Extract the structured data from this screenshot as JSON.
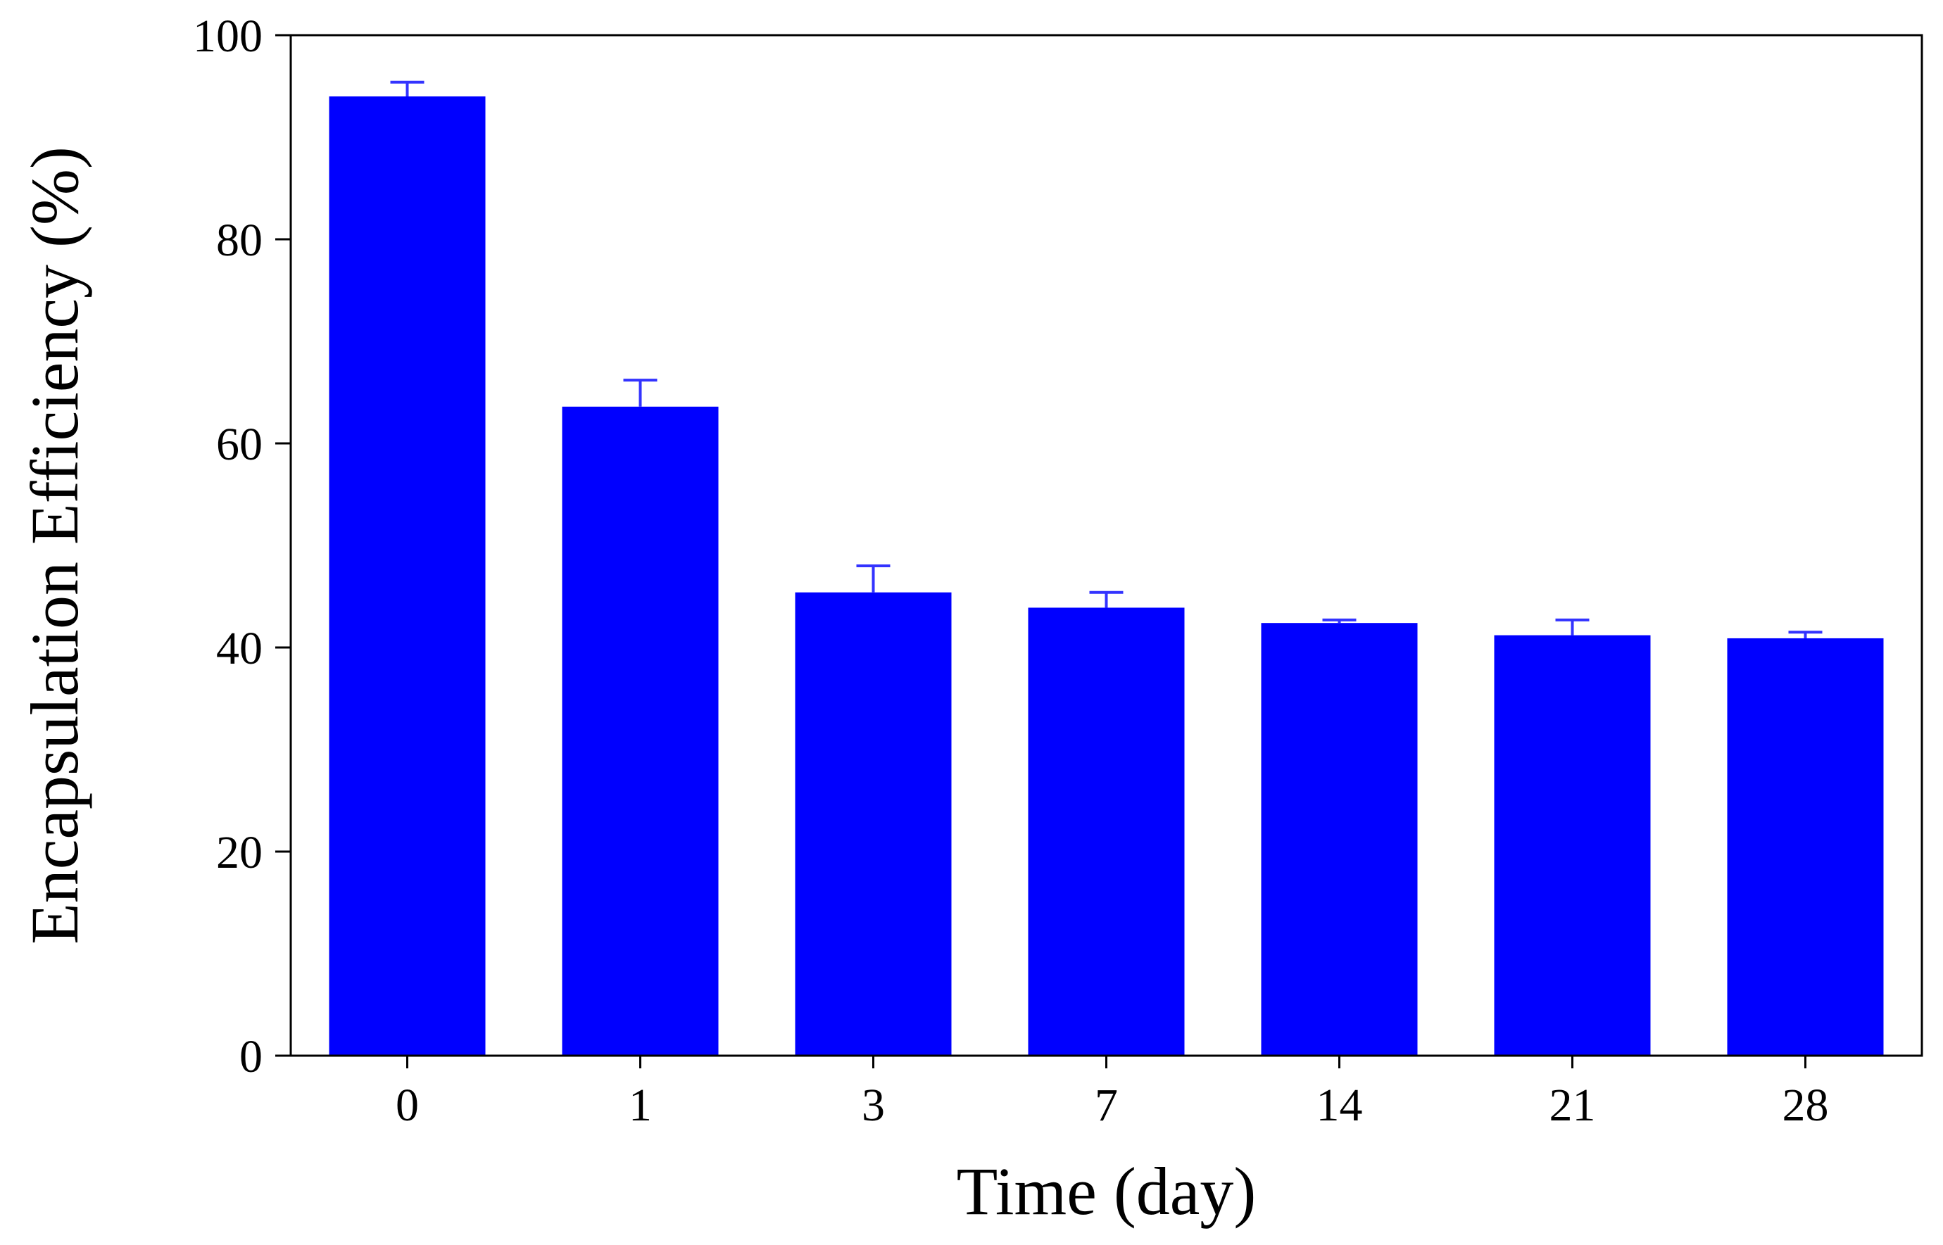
{
  "chart_data": {
    "type": "bar",
    "title": "",
    "xlabel": "Time (day)",
    "ylabel": "Encapsulation Efficiency (%)",
    "categories": [
      "0",
      "1",
      "3",
      "7",
      "14",
      "21",
      "28"
    ],
    "values": [
      94.0,
      63.6,
      45.4,
      43.9,
      42.4,
      41.2,
      40.9
    ],
    "error_upper": [
      1.4,
      2.6,
      2.6,
      1.5,
      0.3,
      1.5,
      0.6
    ],
    "ylim": [
      0,
      100
    ],
    "yticks": [
      0,
      20,
      40,
      60,
      80,
      100
    ],
    "grid": false,
    "bar_color": "#0000ff",
    "error_bar_color": "#3333ff",
    "axis_color": "#000000"
  }
}
